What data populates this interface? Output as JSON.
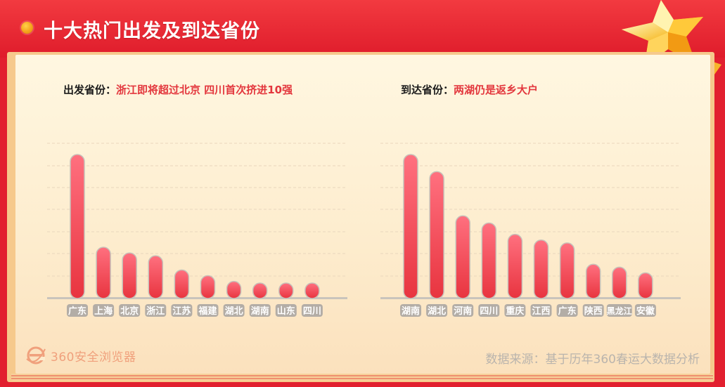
{
  "header": {
    "title": "十大热门出发及到达省份"
  },
  "left": {
    "label": "出发省份：",
    "highlight": "浙江即将超过北京 四川首次挤进10强"
  },
  "right": {
    "label": "到达省份：",
    "highlight": "两湖仍是返乡大户"
  },
  "footer": {
    "logo_text": "360安全浏览器",
    "source": "数据来源：基于历年360春运大数据分析"
  },
  "colors": {
    "bar_top": "#ff6f7f",
    "bar_bottom": "#e8343f",
    "accent": "#e3373d"
  },
  "chart_data": [
    {
      "type": "bar",
      "title": "出发省份",
      "categories": [
        "广东",
        "上海",
        "北京",
        "浙江",
        "江苏",
        "福建",
        "湖北",
        "湖南",
        "山东",
        "四川"
      ],
      "values": [
        100,
        35,
        31,
        29,
        19,
        15,
        11,
        9,
        8,
        6
      ],
      "ylim": [
        0,
        100
      ],
      "grid": true
    },
    {
      "type": "bar",
      "title": "到达省份",
      "categories": [
        "湖南",
        "湖北",
        "河南",
        "四川",
        "重庆",
        "江西",
        "广东",
        "陕西",
        "黑龙江",
        "安徽"
      ],
      "values": [
        100,
        88,
        57,
        52,
        44,
        40,
        38,
        23,
        21,
        17
      ],
      "ylim": [
        0,
        100
      ],
      "grid": true
    }
  ]
}
